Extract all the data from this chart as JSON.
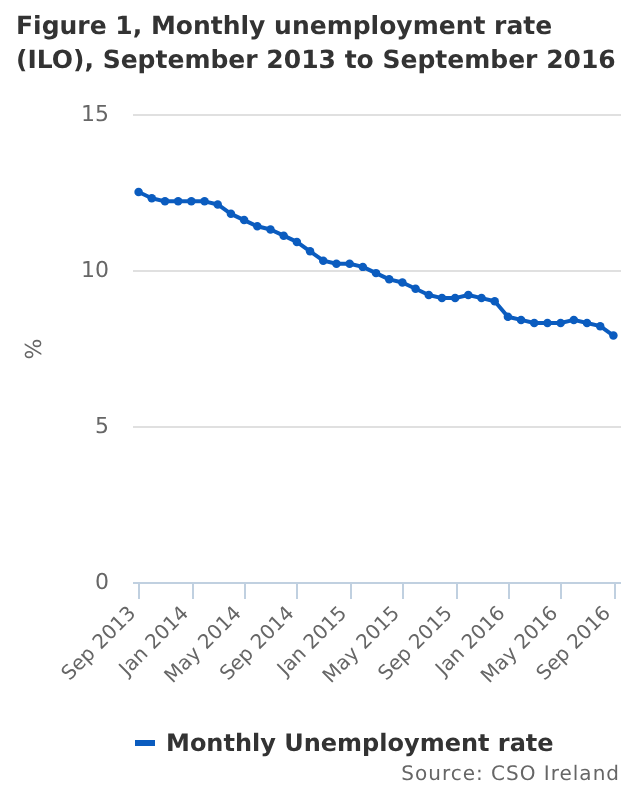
{
  "chart_data": {
    "type": "line",
    "title": "Figure 1, Monthly unemployment rate (ILO), September 2013 to September 2016",
    "ylabel": "%",
    "categories": [
      "Sep 2013",
      null,
      null,
      null,
      "Jan 2014",
      null,
      null,
      null,
      "May 2014",
      null,
      null,
      null,
      "Sep 2014",
      null,
      null,
      null,
      "Jan 2015",
      null,
      null,
      null,
      "May 2015",
      null,
      null,
      null,
      "Sep 2015",
      null,
      null,
      null,
      "Jan 2016",
      null,
      null,
      null,
      "May 2016",
      null,
      null,
      null,
      "Sep 2016"
    ],
    "series": [
      {
        "name": "Monthly Unemployment rate",
        "color": "#0b5cbf",
        "values": [
          12.5,
          12.3,
          12.2,
          12.2,
          12.2,
          12.2,
          12.1,
          11.8,
          11.6,
          11.4,
          11.3,
          11.1,
          10.9,
          10.6,
          10.3,
          10.2,
          10.2,
          10.1,
          9.9,
          9.7,
          9.6,
          9.4,
          9.2,
          9.1,
          9.1,
          9.2,
          9.1,
          9.0,
          8.5,
          8.4,
          8.3,
          8.3,
          8.3,
          8.4,
          8.3,
          8.2,
          7.9
        ]
      }
    ],
    "ylim": [
      0,
      15
    ],
    "yticks": [
      0,
      5,
      10,
      15
    ],
    "grid": "y",
    "legend": "bottom",
    "marker": "circle",
    "annotations": [
      "Source: CSO Ireland"
    ]
  }
}
